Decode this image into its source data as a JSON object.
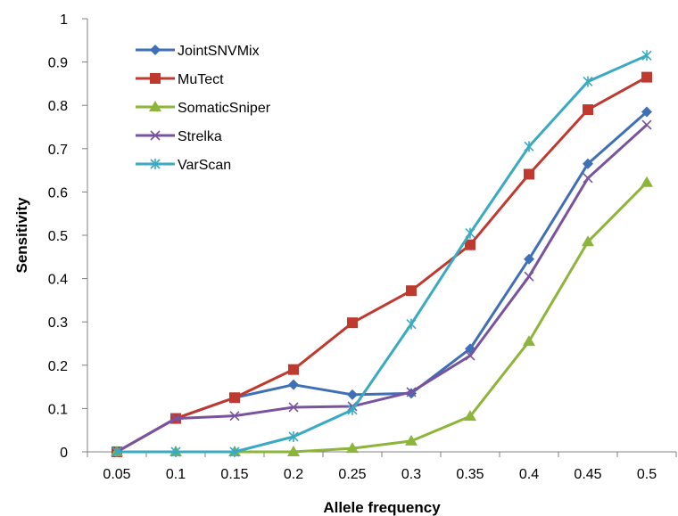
{
  "chart_data": {
    "type": "line",
    "title": "",
    "xlabel": "Allele frequency",
    "ylabel": "Sensitivity",
    "categories": [
      "0.05",
      "0.1",
      "0.15",
      "0.2",
      "0.25",
      "0.3",
      "0.35",
      "0.4",
      "0.45",
      "0.5"
    ],
    "yticks": [
      "0",
      "0.1",
      "0.2",
      "0.3",
      "0.4",
      "0.5",
      "0.6",
      "0.7",
      "0.8",
      "0.9",
      "1"
    ],
    "ylim": [
      0,
      1
    ],
    "grid": false,
    "legend_position": "top-left",
    "series": [
      {
        "name": "JointSNVMix",
        "color": "#3F6FB4",
        "marker": "diamond",
        "values": [
          0.0,
          0.077,
          0.125,
          0.155,
          0.132,
          0.135,
          0.238,
          0.445,
          0.665,
          0.785
        ]
      },
      {
        "name": "MuTect",
        "color": "#C0392F",
        "marker": "square",
        "values": [
          0.0,
          0.077,
          0.125,
          0.19,
          0.298,
          0.372,
          0.478,
          0.641,
          0.79,
          0.865
        ]
      },
      {
        "name": "SomaticSniper",
        "color": "#8DB53A",
        "marker": "triangle",
        "values": [
          0.0,
          0.0,
          0.0,
          0.0,
          0.008,
          0.025,
          0.082,
          0.255,
          0.485,
          0.622
        ]
      },
      {
        "name": "Strelka",
        "color": "#7A539F",
        "marker": "x",
        "values": [
          0.0,
          0.077,
          0.083,
          0.103,
          0.105,
          0.138,
          0.222,
          0.405,
          0.632,
          0.755
        ]
      },
      {
        "name": "VarScan",
        "color": "#3AAAC2",
        "marker": "star",
        "values": [
          0.0,
          0.0,
          0.0,
          0.035,
          0.097,
          0.295,
          0.505,
          0.705,
          0.855,
          0.915
        ]
      }
    ]
  }
}
